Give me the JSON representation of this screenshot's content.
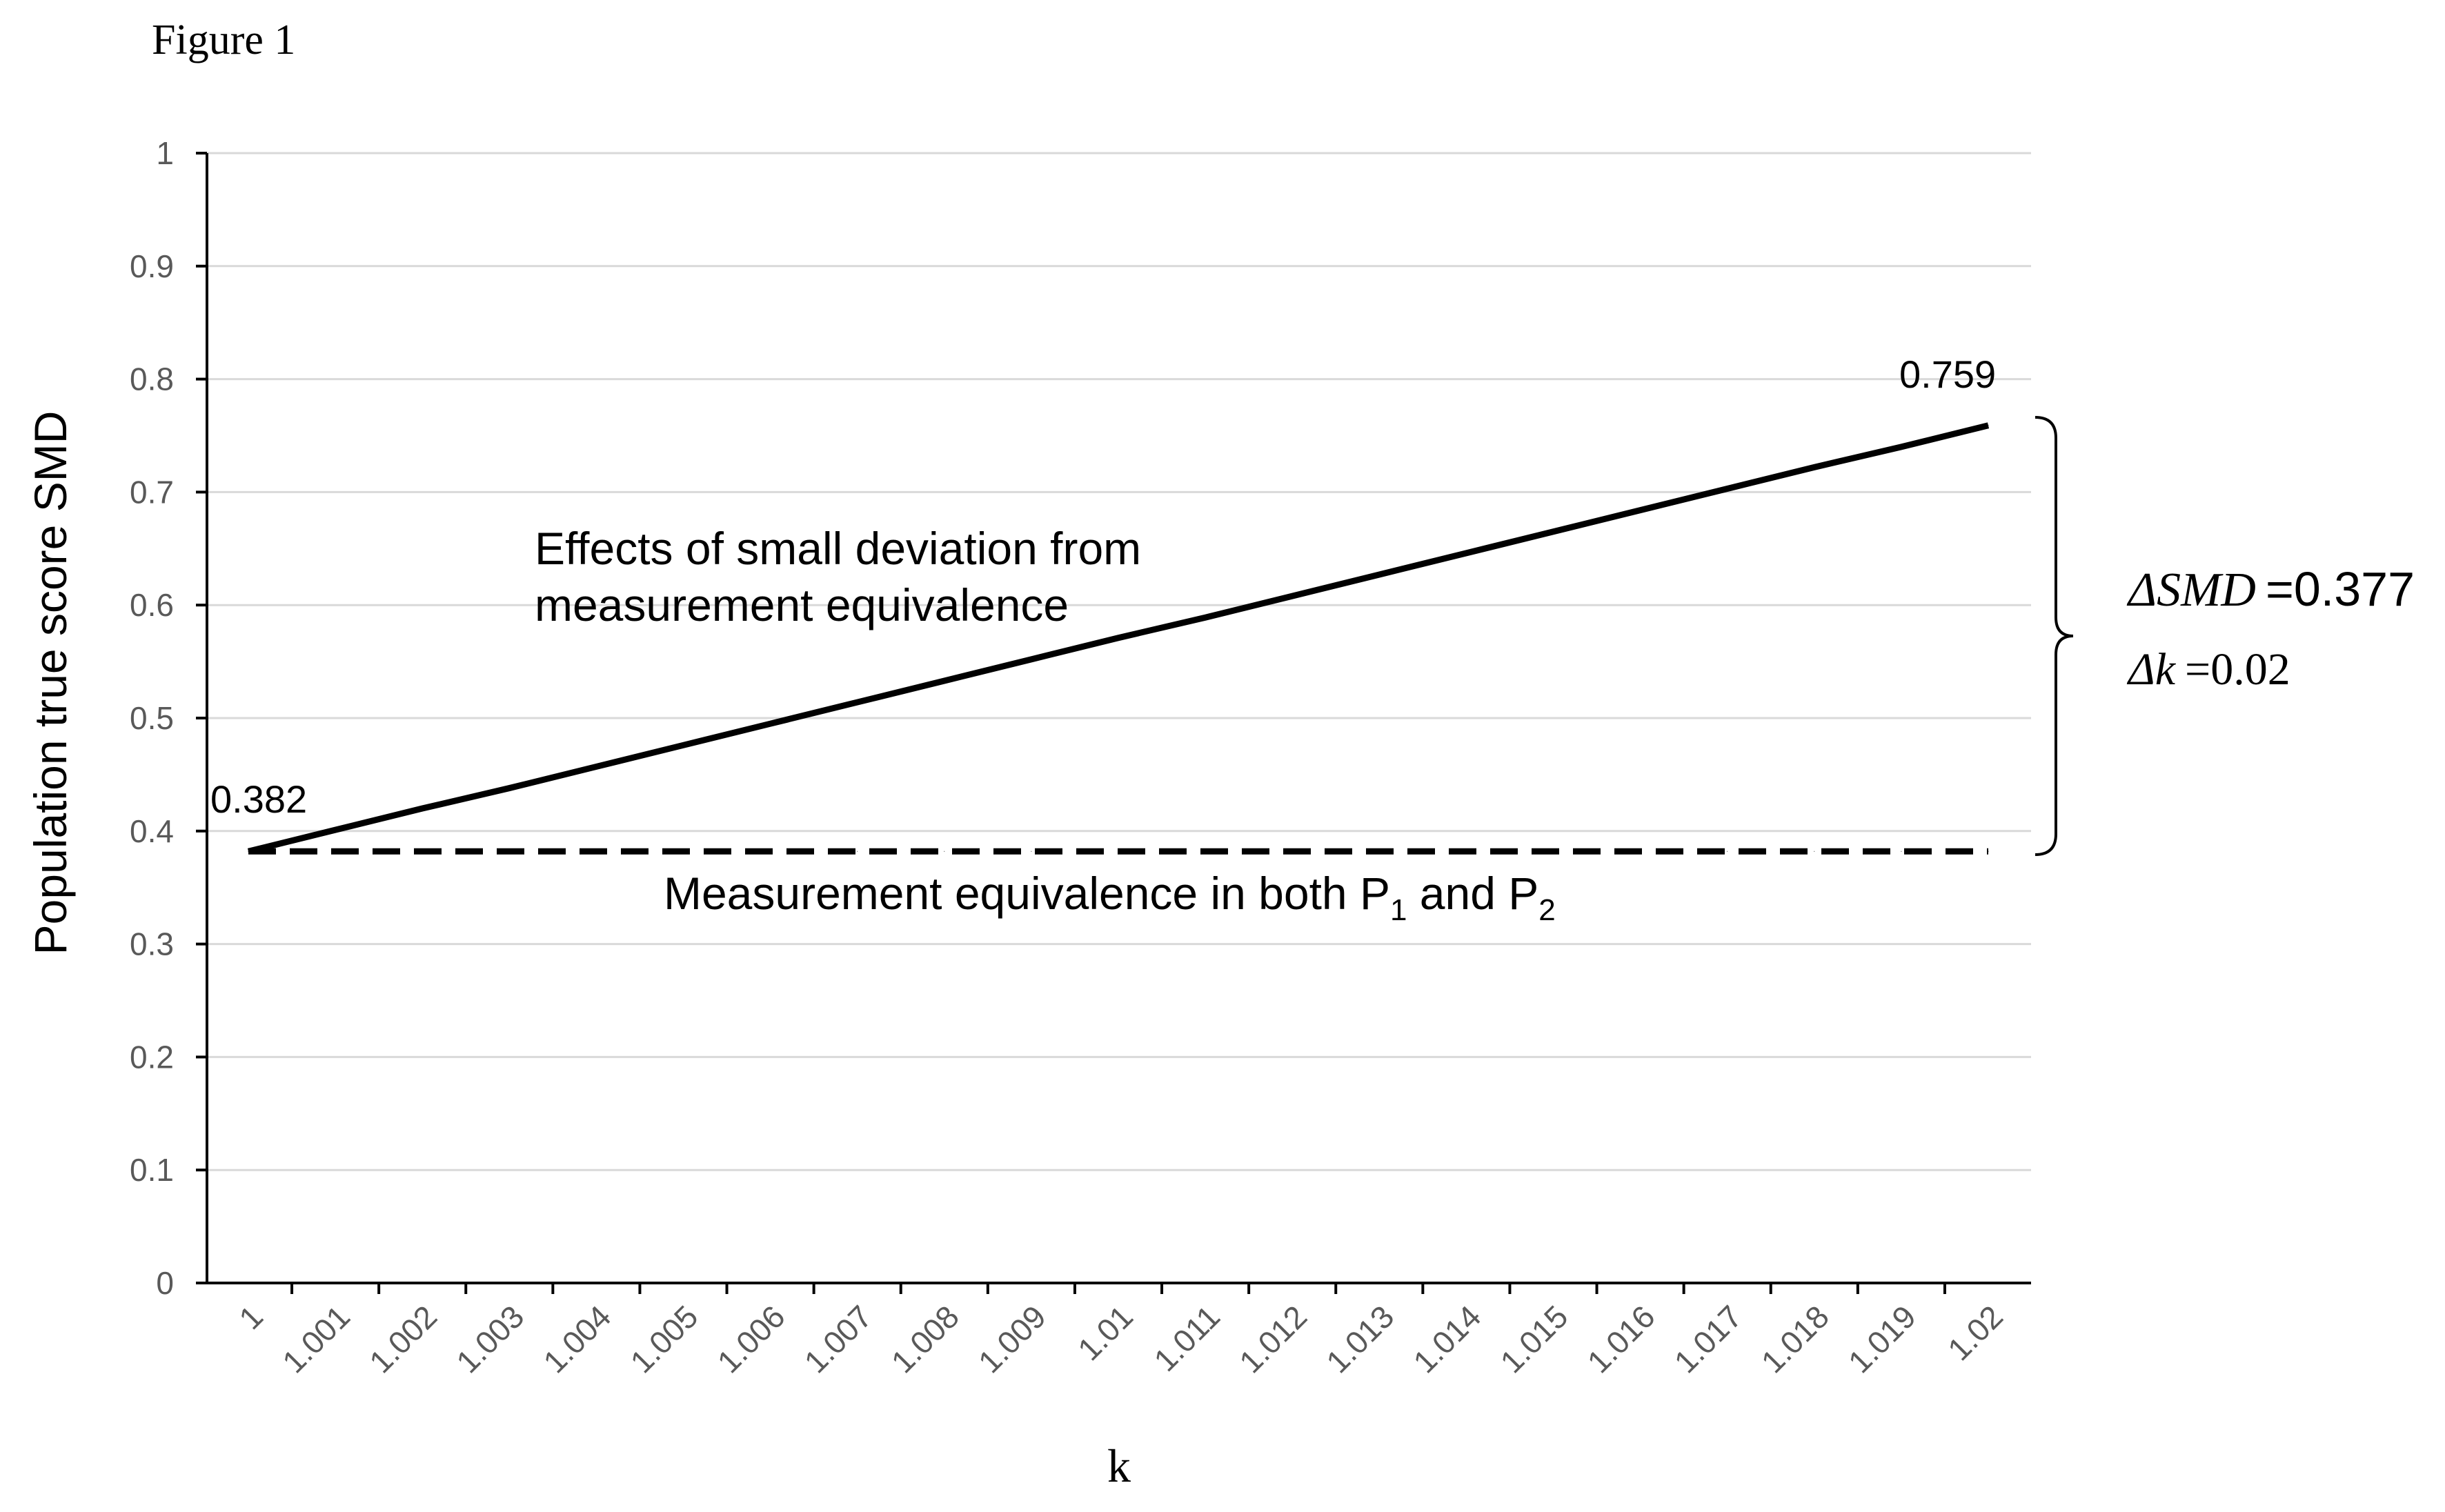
{
  "figure_label": "Figure 1",
  "chart_data": {
    "type": "line",
    "title": "",
    "xlabel": "k",
    "ylabel": "Population true score SMD",
    "categories": [
      "1",
      "1.001",
      "1.002",
      "1.003",
      "1.004",
      "1.005",
      "1.006",
      "1.007",
      "1.008",
      "1.009",
      "1.01",
      "1.011",
      "1.012",
      "1.013",
      "1.014",
      "1.015",
      "1.016",
      "1.017",
      "1.018",
      "1.019",
      "1.02"
    ],
    "ylim": [
      0,
      1
    ],
    "yticks": [
      "0",
      "0.1",
      "0.2",
      "0.3",
      "0.4",
      "0.5",
      "0.6",
      "0.7",
      "0.8",
      "0.9",
      "1"
    ],
    "grid": true,
    "series": [
      {
        "name": "Effects of small deviation from measurement equivalence",
        "style": "solid",
        "color": "#000000",
        "values": [
          0.382,
          0.401,
          0.42,
          0.438,
          0.457,
          0.476,
          0.495,
          0.514,
          0.533,
          0.552,
          0.571,
          0.589,
          0.608,
          0.627,
          0.646,
          0.665,
          0.684,
          0.703,
          0.722,
          0.74,
          0.759
        ]
      },
      {
        "name": "Measurement equivalence in both P1 and P2",
        "style": "dashed",
        "color": "#000000",
        "values": [
          0.382,
          0.382,
          0.382,
          0.382,
          0.382,
          0.382,
          0.382,
          0.382,
          0.382,
          0.382,
          0.382,
          0.382,
          0.382,
          0.382,
          0.382,
          0.382,
          0.382,
          0.382,
          0.382,
          0.382,
          0.382
        ]
      }
    ],
    "annotations": {
      "start_value": "0.382",
      "end_value": "0.759",
      "deviation_line1": "Effects of small deviation from",
      "deviation_line2": "measurement equivalence",
      "equivalence_text": "Measurement equivalence in both P",
      "equivalence_sub1": "1",
      "equivalence_and": " and P",
      "equivalence_sub2": "2",
      "delta_smd_label": "ΔSMD",
      "delta_smd_value": "=0.377",
      "delta_k_label": "Δk",
      "delta_k_value": "=0.02"
    }
  }
}
